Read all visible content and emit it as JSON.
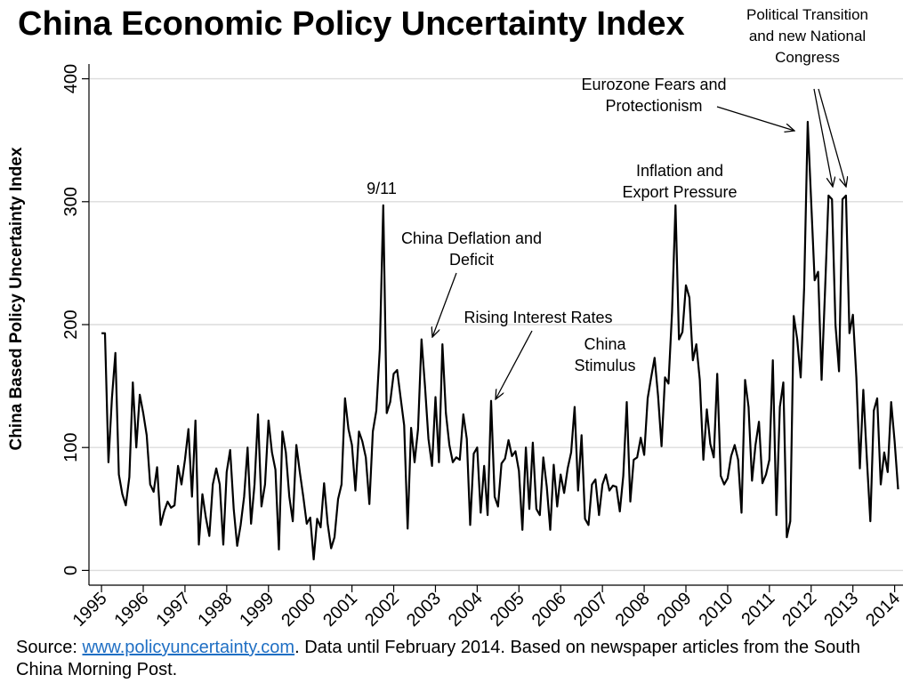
{
  "title": "China Economic Policy Uncertainty Index",
  "source": {
    "prefix": "Source: ",
    "link_text": "www.policyuncertainty.com",
    "suffix": ". Data until February 2014. Based on newspaper articles from the South China Morning Post."
  },
  "chart_data": {
    "type": "line",
    "title": "China Economic Policy Uncertainty Index",
    "xlabel": "",
    "ylabel": "China Based Policy Uncertainty Index",
    "ylim": [
      -12,
      412
    ],
    "xlim": [
      1994.7,
      2014.2
    ],
    "y_ticks": [
      "0",
      "100",
      "200",
      "300",
      "400"
    ],
    "x_ticks": [
      "1995",
      "1996",
      "1997",
      "1998",
      "1999",
      "2000",
      "2001",
      "2002",
      "2003",
      "2004",
      "2005",
      "2006",
      "2007",
      "2008",
      "2009",
      "2010",
      "2011",
      "2012",
      "2013",
      "2014"
    ],
    "grid": "horizontal",
    "line_color": "#000000",
    "series": [
      {
        "x": [
          1995.0,
          1995.083,
          1995.167,
          1995.25,
          1995.333,
          1995.417,
          1995.5,
          1995.583,
          1995.667,
          1995.75,
          1995.833,
          1995.917,
          1996.0,
          1996.083,
          1996.167,
          1996.25,
          1996.333,
          1996.417,
          1996.5,
          1996.583,
          1996.667,
          1996.75,
          1996.833,
          1996.917,
          1997.0,
          1997.083,
          1997.167,
          1997.25,
          1997.333,
          1997.417,
          1997.5,
          1997.583,
          1997.667,
          1997.75,
          1997.833,
          1997.917,
          1998.0,
          1998.083,
          1998.167,
          1998.25,
          1998.333,
          1998.417,
          1998.5,
          1998.583,
          1998.667,
          1998.75,
          1998.833,
          1998.917,
          1999.0,
          1999.083,
          1999.167,
          1999.25,
          1999.333,
          1999.417,
          1999.5,
          1999.583,
          1999.667,
          1999.75,
          1999.833,
          1999.917,
          2000.0,
          2000.083,
          2000.167,
          2000.25,
          2000.333,
          2000.417,
          2000.5,
          2000.583,
          2000.667,
          2000.75,
          2000.833,
          2000.917,
          2001.0,
          2001.083,
          2001.167,
          2001.25,
          2001.333,
          2001.417,
          2001.5,
          2001.583,
          2001.667,
          2001.75,
          2001.833,
          2001.917,
          2002.0,
          2002.083,
          2002.167,
          2002.25,
          2002.333,
          2002.417,
          2002.5,
          2002.583,
          2002.667,
          2002.75,
          2002.833,
          2002.917,
          2003.0,
          2003.083,
          2003.167,
          2003.25,
          2003.333,
          2003.417,
          2003.5,
          2003.583,
          2003.667,
          2003.75,
          2003.833,
          2003.917,
          2004.0,
          2004.083,
          2004.167,
          2004.25,
          2004.333,
          2004.417,
          2004.5,
          2004.583,
          2004.667,
          2004.75,
          2004.833,
          2004.917,
          2005.0,
          2005.083,
          2005.167,
          2005.25,
          2005.333,
          2005.417,
          2005.5,
          2005.583,
          2005.667,
          2005.75,
          2005.833,
          2005.917,
          2006.0,
          2006.083,
          2006.167,
          2006.25,
          2006.333,
          2006.417,
          2006.5,
          2006.583,
          2006.667,
          2006.75,
          2006.833,
          2006.917,
          2007.0,
          2007.083,
          2007.167,
          2007.25,
          2007.333,
          2007.417,
          2007.5,
          2007.583,
          2007.667,
          2007.75,
          2007.833,
          2007.917,
          2008.0,
          2008.083,
          2008.167,
          2008.25,
          2008.333,
          2008.417,
          2008.5,
          2008.583,
          2008.667,
          2008.75,
          2008.833,
          2008.917,
          2009.0,
          2009.083,
          2009.167,
          2009.25,
          2009.333,
          2009.417,
          2009.5,
          2009.583,
          2009.667,
          2009.75,
          2009.833,
          2009.917,
          2010.0,
          2010.083,
          2010.167,
          2010.25,
          2010.333,
          2010.417,
          2010.5,
          2010.583,
          2010.667,
          2010.75,
          2010.833,
          2010.917,
          2011.0,
          2011.083,
          2011.167,
          2011.25,
          2011.333,
          2011.417,
          2011.5,
          2011.583,
          2011.667,
          2011.75,
          2011.833,
          2011.917,
          2012.0,
          2012.083,
          2012.167,
          2012.25,
          2012.333,
          2012.417,
          2012.5,
          2012.583,
          2012.667,
          2012.75,
          2012.833,
          2012.917,
          2013.0,
          2013.083,
          2013.167,
          2013.25,
          2013.333,
          2013.417,
          2013.5,
          2013.583,
          2013.667,
          2013.75,
          2013.833,
          2013.917,
          2014.0,
          2014.083
        ],
        "values": [
          193,
          193,
          88,
          140,
          177,
          78,
          62,
          53,
          76,
          153,
          100,
          143,
          128,
          110,
          70,
          64,
          84,
          37,
          48,
          56,
          51,
          53,
          85,
          70,
          90,
          115,
          60,
          122,
          21,
          62,
          43,
          28,
          70,
          83,
          70,
          21,
          80,
          98,
          50,
          20,
          37,
          60,
          100,
          38,
          70,
          127,
          52,
          70,
          122,
          96,
          82,
          17,
          113,
          96,
          60,
          40,
          102,
          80,
          60,
          38,
          43,
          9,
          42,
          35,
          71,
          38,
          18,
          27,
          58,
          70,
          140,
          115,
          102,
          65,
          113,
          105,
          92,
          54,
          113,
          130,
          180,
          297,
          128,
          137,
          160,
          163,
          140,
          118,
          34,
          116,
          88,
          115,
          188,
          150,
          107,
          85,
          141,
          88,
          184,
          128,
          102,
          88,
          92,
          90,
          127,
          107,
          37,
          95,
          100,
          47,
          85,
          45,
          138,
          60,
          52,
          87,
          91,
          106,
          93,
          97,
          81,
          33,
          100,
          50,
          104,
          50,
          45,
          92,
          68,
          33,
          86,
          52,
          78,
          63,
          83,
          96,
          133,
          65,
          110,
          42,
          37,
          70,
          74,
          45,
          70,
          78,
          65,
          69,
          68,
          48,
          77,
          137,
          56,
          90,
          92,
          108,
          94,
          140,
          157,
          173,
          142,
          101,
          157,
          152,
          210,
          297,
          188,
          194,
          232,
          222,
          171,
          184,
          155,
          90,
          131,
          103,
          92,
          160,
          77,
          70,
          75,
          93,
          102,
          90,
          47,
          155,
          133,
          73,
          102,
          121,
          71,
          78,
          90,
          171,
          45,
          133,
          153,
          27,
          40,
          207,
          188,
          157,
          230,
          365,
          300,
          236,
          243,
          155,
          228,
          305,
          302,
          200,
          162,
          302,
          305,
          193,
          208,
          157,
          83,
          147,
          92,
          40,
          130,
          140,
          70,
          96,
          80,
          137,
          105,
          66
        ]
      }
    ],
    "annotations": [
      {
        "text": "9/11",
        "at": [
          2001.75,
          297
        ]
      },
      {
        "text": "China Deflation and Deficit",
        "at": [
          2002.9,
          188
        ]
      },
      {
        "text": "Rising Interest Rates",
        "at": [
          2004.42,
          138
        ]
      },
      {
        "text": "China Stimulus",
        "at": [
          2008.75,
          297
        ]
      },
      {
        "text": "Inflation and Export Pressure",
        "at": [
          2008.75,
          297
        ]
      },
      {
        "text": "Eurozone Fears and Protectionism",
        "at": [
          2011.8,
          357
        ]
      },
      {
        "text": "Political Transition and new National Congress",
        "at": [
          [
            2012.5,
            305
          ],
          [
            2012.87,
            305
          ]
        ]
      }
    ]
  }
}
